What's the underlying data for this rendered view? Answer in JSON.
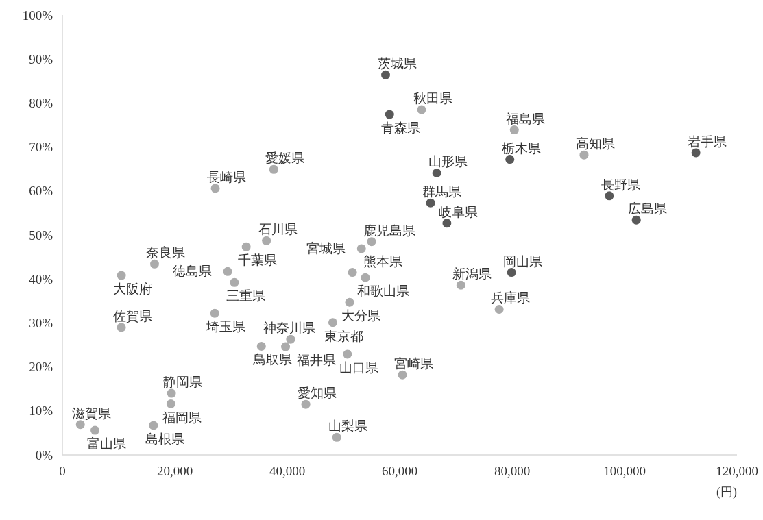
{
  "chart_data": {
    "type": "scatter",
    "xlabel": "(円)",
    "xlim": [
      0,
      120000
    ],
    "ylim": [
      0,
      100
    ],
    "xticks": [
      0,
      {
        "value": 20000,
        "label": "20,000"
      },
      {
        "value": 40000,
        "label": "40,000"
      },
      {
        "value": 60000,
        "label": "60,000"
      },
      {
        "value": 80000,
        "label": "80,000"
      },
      {
        "value": 100000,
        "label": "100,000"
      },
      {
        "value": 120000,
        "label": "120,000"
      }
    ],
    "yticks": [
      {
        "value": 0,
        "label": "0%"
      },
      {
        "value": 10,
        "label": "10%"
      },
      {
        "value": 20,
        "label": "20%"
      },
      {
        "value": 30,
        "label": "30%"
      },
      {
        "value": 40,
        "label": "40%"
      },
      {
        "value": 50,
        "label": "50%"
      },
      {
        "value": 60,
        "label": "60%"
      },
      {
        "value": 70,
        "label": "70%"
      },
      {
        "value": 80,
        "label": "80%"
      },
      {
        "value": 90,
        "label": "90%"
      },
      {
        "value": 100,
        "label": "100%"
      }
    ],
    "grid": false,
    "marker": "circle",
    "series": [
      {
        "color": "#595959",
        "x": [
          57500,
          58200,
          66600,
          79600,
          112700,
          97300,
          102100,
          65500,
          68400,
          79900
        ],
        "values": [
          86.4,
          77.4,
          64.1,
          67.2,
          68.7,
          58.9,
          53.4,
          57.3,
          52.7,
          41.5
        ]
      },
      {
        "color": "#ababab",
        "x": [
          63900,
          80400,
          92800,
          27200,
          37600,
          32700,
          36300,
          53200,
          55000,
          16400,
          10500,
          29400,
          30600,
          51600,
          53900,
          70900,
          77700,
          51100,
          48100,
          27100,
          10500,
          35400,
          40600,
          39700,
          50700,
          60500,
          19400,
          19300,
          16200,
          3200,
          5800,
          43300,
          48800
        ],
        "values": [
          78.5,
          73.9,
          68.2,
          60.6,
          64.9,
          47.3,
          48.7,
          46.9,
          48.5,
          43.4,
          40.8,
          41.7,
          39.2,
          41.5,
          40.3,
          38.6,
          33.1,
          34.7,
          30.1,
          32.2,
          29.0,
          24.7,
          26.3,
          24.6,
          22.9,
          18.2,
          14.0,
          11.6,
          6.7,
          6.9,
          5.6,
          11.5,
          4.0
        ]
      }
    ],
    "annotations": [
      {
        "text": "茨城県",
        "x": 57500,
        "y": 86.4
      },
      {
        "text": "青森県",
        "x": 58200,
        "y": 77.4
      },
      {
        "text": "山形県",
        "x": 66600,
        "y": 64.1
      },
      {
        "text": "栃木県",
        "x": 79600,
        "y": 67.2
      },
      {
        "text": "岩手県",
        "x": 112700,
        "y": 68.7
      },
      {
        "text": "長野県",
        "x": 97300,
        "y": 58.9
      },
      {
        "text": "広島県",
        "x": 102100,
        "y": 53.4
      },
      {
        "text": "群馬県",
        "x": 65500,
        "y": 57.3
      },
      {
        "text": "岐阜県",
        "x": 68400,
        "y": 52.7
      },
      {
        "text": "岡山県",
        "x": 79900,
        "y": 41.5
      },
      {
        "text": "秋田県",
        "x": 63900,
        "y": 78.5
      },
      {
        "text": "福島県",
        "x": 80400,
        "y": 73.9
      },
      {
        "text": "高知県",
        "x": 92800,
        "y": 68.2
      },
      {
        "text": "長崎県",
        "x": 27200,
        "y": 60.6
      },
      {
        "text": "愛媛県",
        "x": 37600,
        "y": 64.9
      },
      {
        "text": "千葉県",
        "x": 32700,
        "y": 47.3
      },
      {
        "text": "石川県",
        "x": 36300,
        "y": 48.7
      },
      {
        "text": "宮城県",
        "x": 53200,
        "y": 46.9
      },
      {
        "text": "鹿児島県",
        "x": 55000,
        "y": 48.5
      },
      {
        "text": "奈良県",
        "x": 16400,
        "y": 43.4
      },
      {
        "text": "大阪府",
        "x": 10500,
        "y": 40.8
      },
      {
        "text": "徳島県",
        "x": 29400,
        "y": 41.7
      },
      {
        "text": "三重県",
        "x": 30600,
        "y": 39.2
      },
      {
        "text": "熊本県",
        "x": 51600,
        "y": 41.5
      },
      {
        "text": "和歌山県",
        "x": 53900,
        "y": 40.3
      },
      {
        "text": "新潟県",
        "x": 70900,
        "y": 38.6
      },
      {
        "text": "兵庫県",
        "x": 77700,
        "y": 33.1
      },
      {
        "text": "大分県",
        "x": 51100,
        "y": 34.7
      },
      {
        "text": "東京都",
        "x": 48100,
        "y": 30.1
      },
      {
        "text": "埼玉県",
        "x": 27100,
        "y": 32.2
      },
      {
        "text": "佐賀県",
        "x": 10500,
        "y": 29.0
      },
      {
        "text": "鳥取県",
        "x": 35400,
        "y": 24.7
      },
      {
        "text": "神奈川県",
        "x": 40600,
        "y": 26.3
      },
      {
        "text": "福井県",
        "x": 39700,
        "y": 24.6
      },
      {
        "text": "山口県",
        "x": 50700,
        "y": 22.9
      },
      {
        "text": "宮崎県",
        "x": 60500,
        "y": 18.2
      },
      {
        "text": "静岡県",
        "x": 19400,
        "y": 14.0
      },
      {
        "text": "福岡県",
        "x": 19300,
        "y": 11.6
      },
      {
        "text": "島根県",
        "x": 16200,
        "y": 6.7
      },
      {
        "text": "滋賀県",
        "x": 3200,
        "y": 6.9
      },
      {
        "text": "富山県",
        "x": 5800,
        "y": 5.6
      },
      {
        "text": "愛知県",
        "x": 43300,
        "y": 11.5
      },
      {
        "text": "山梨県",
        "x": 48800,
        "y": 4.0
      }
    ]
  }
}
